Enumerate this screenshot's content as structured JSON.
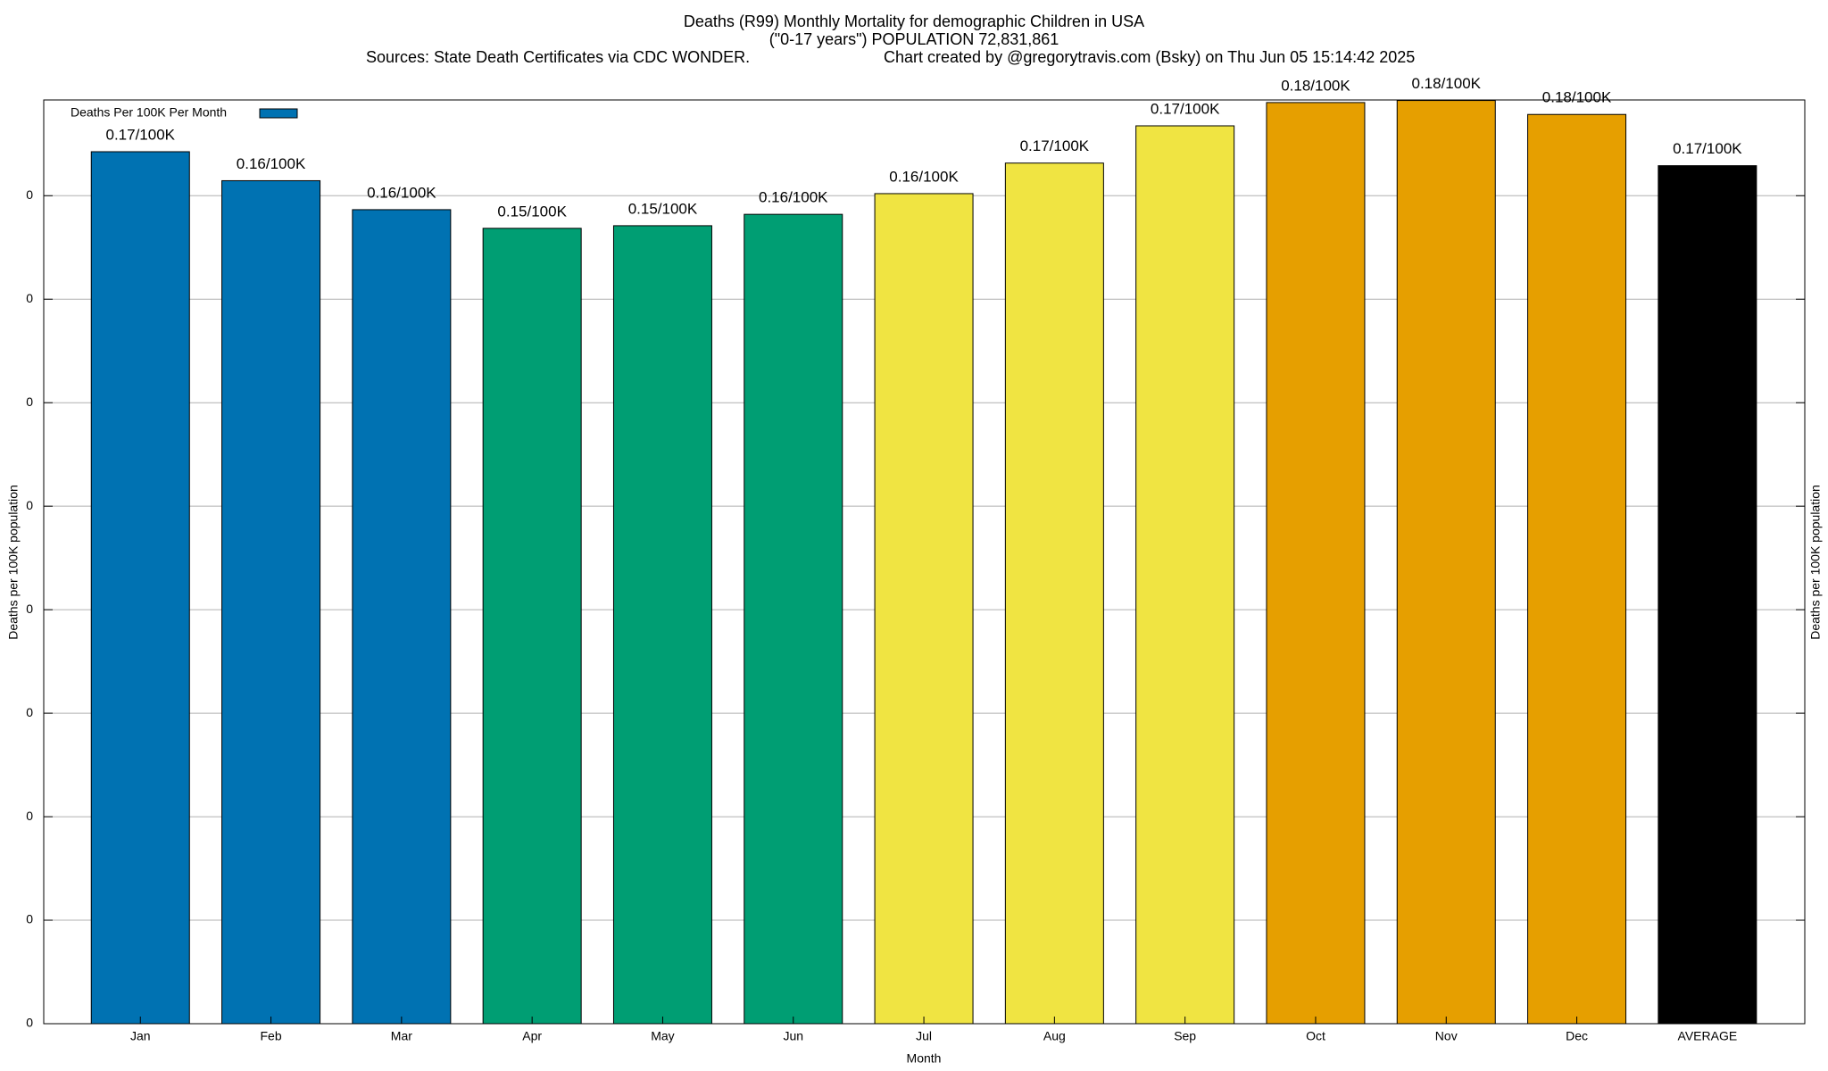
{
  "chart_data": {
    "type": "bar",
    "title": "Deaths (R99) Monthly Mortality for demographic Children in USA",
    "subtitle": "(\"0-17 years\") POPULATION 72,831,861",
    "source": "Sources: State Death Certificates via CDC WONDER.",
    "credit": "Chart created by @gregorytravis.com (Bsky) on Thu Jun 05 15:14:42 2025",
    "x_label": "Month",
    "y_label": "Deaths per 100K population",
    "categories": [
      "Jan",
      "Feb",
      "Mar",
      "Apr",
      "May",
      "Jun",
      "Jul",
      "Aug",
      "Sep",
      "Oct",
      "Nov",
      "Dec",
      "AVERAGE"
    ],
    "series": [
      {
        "name": "Deaths Per 100K Per Month",
        "color": "#0072b2",
        "values": [
          0.1685,
          0.1629,
          0.1573,
          0.1537,
          0.1542,
          0.1564,
          0.1604,
          0.1663,
          0.1735,
          0.178,
          0.1784,
          0.1757,
          0.1658
        ],
        "value_labels": [
          "0.17/100K",
          "0.16/100K",
          "0.16/100K",
          "0.15/100K",
          "0.15/100K",
          "0.16/100K",
          "0.16/100K",
          "0.17/100K",
          "0.17/100K",
          "0.18/100K",
          "0.18/100K",
          "0.18/100K",
          "0.17/100K"
        ],
        "colors": [
          "#0072b2",
          "#0072b2",
          "#0072b2",
          "#009e73",
          "#009e73",
          "#009e73",
          "#f0e442",
          "#f0e442",
          "#f0e442",
          "#e69f00",
          "#e69f00",
          "#e69f00",
          "#000000"
        ]
      }
    ],
    "ylim": [
      0,
      0.1785
    ],
    "yticks": [
      0,
      {
        "value": 0.02,
        "label": "0"
      },
      {
        "value": 0.04,
        "label": "0"
      },
      {
        "value": 0.06,
        "label": "0"
      },
      {
        "value": 0.08,
        "label": "0"
      },
      {
        "value": 0.1,
        "label": "0"
      },
      {
        "value": 0.12,
        "label": "0"
      },
      {
        "value": 0.14,
        "label": "0"
      },
      {
        "value": 0.16,
        "label": "0"
      }
    ],
    "grid": true,
    "legend": "top-left"
  }
}
